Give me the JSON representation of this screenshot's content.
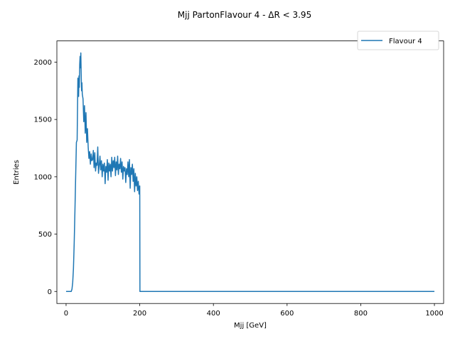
{
  "chart_data": {
    "type": "line",
    "title": "Mjj PartonFlavour 4 - ΔR < 3.95",
    "xlabel": "Mjj [GeV]",
    "ylabel": "Entries",
    "xlim": [
      -25,
      1025
    ],
    "ylim": [
      -105,
      2185
    ],
    "xticks": [
      0,
      200,
      400,
      600,
      800,
      1000
    ],
    "yticks": [
      0,
      500,
      1000,
      1500,
      2000
    ],
    "xtick_labels": [
      "0",
      "200",
      "400",
      "600",
      "800",
      "1000"
    ],
    "ytick_labels": [
      "0",
      "500",
      "1000",
      "1500",
      "2000"
    ],
    "grid": false,
    "legend_position": "top-right",
    "colors": {
      "series": "#1f77b4",
      "axis": "#000000",
      "legend_border": "#cccccc"
    },
    "series": [
      {
        "name": "Flavour 4",
        "x": [
          0,
          8,
          14,
          16,
          18,
          20,
          22,
          24,
          26,
          28,
          30,
          32,
          34,
          35,
          36,
          37,
          38,
          39,
          40,
          41,
          42,
          43,
          44,
          46,
          48,
          50,
          52,
          54,
          56,
          58,
          60,
          62,
          64,
          66,
          68,
          70,
          72,
          74,
          76,
          78,
          80,
          82,
          84,
          86,
          88,
          90,
          92,
          94,
          96,
          98,
          100,
          102,
          104,
          106,
          108,
          110,
          112,
          114,
          116,
          118,
          120,
          122,
          124,
          126,
          128,
          130,
          132,
          134,
          136,
          138,
          140,
          142,
          144,
          146,
          148,
          150,
          152,
          154,
          156,
          158,
          160,
          162,
          164,
          166,
          168,
          170,
          172,
          174,
          176,
          178,
          180,
          182,
          184,
          186,
          188,
          190,
          192,
          194,
          196,
          198,
          200,
          200.5,
          300,
          400,
          500,
          600,
          700,
          800,
          900,
          1000
        ],
        "y": [
          0,
          0,
          0,
          20,
          80,
          200,
          420,
          700,
          1000,
          1300,
          1320,
          1860,
          1700,
          1880,
          1780,
          1980,
          2050,
          1950,
          2080,
          1900,
          1750,
          1820,
          1720,
          1680,
          1480,
          1620,
          1380,
          1560,
          1300,
          1420,
          1260,
          1160,
          1220,
          1110,
          1200,
          1140,
          1150,
          1230,
          1080,
          1210,
          1050,
          1120,
          1100,
          1260,
          1030,
          1100,
          1180,
          1060,
          1140,
          1000,
          1110,
          1050,
          1120,
          940,
          1090,
          1040,
          1150,
          970,
          1120,
          1050,
          1110,
          1000,
          1170,
          1050,
          1140,
          1080,
          1170,
          1010,
          1130,
          1060,
          1180,
          1020,
          1110,
          1070,
          1160,
          1040,
          1130,
          980,
          1090,
          1050,
          1080,
          950,
          1070,
          1020,
          1130,
          1000,
          1150,
          900,
          1080,
          1020,
          1110,
          960,
          1070,
          870,
          1030,
          920,
          1000,
          880,
          960,
          850,
          920,
          0,
          0,
          0,
          0,
          0,
          0,
          0,
          0,
          0
        ]
      }
    ]
  }
}
